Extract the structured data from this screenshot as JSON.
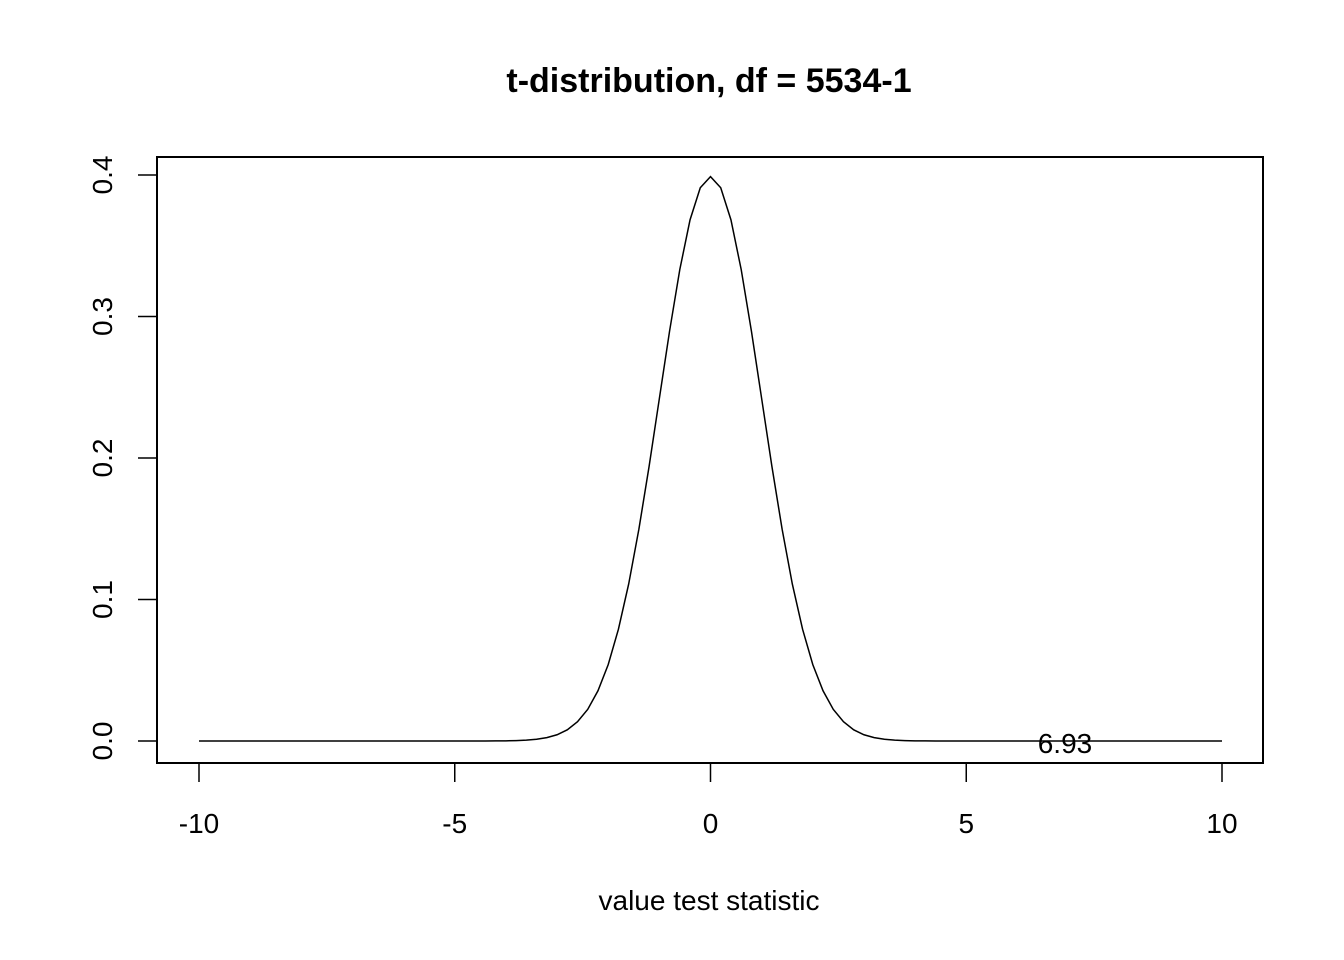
{
  "chart_data": {
    "type": "line",
    "title": "t-distribution, df = 5534-1",
    "xlabel": "value test statistic",
    "ylabel": "",
    "xlim": [
      -10,
      10
    ],
    "ylim": [
      0,
      0.4
    ],
    "x_ticks": [
      -10,
      -5,
      0,
      5,
      10
    ],
    "y_ticks": [
      0.0,
      0.1,
      0.2,
      0.3,
      0.4
    ],
    "x_tick_labels": [
      "-10",
      "-5",
      "0",
      "5",
      "10"
    ],
    "y_tick_labels": [
      "0.0",
      "0.1",
      "0.2",
      "0.3",
      "0.4"
    ],
    "grid": false,
    "series": [
      {
        "x": [
          -10,
          -9.8,
          -9.6,
          -9.4,
          -9.2,
          -9.0,
          -8.8,
          -8.6,
          -8.4,
          -8.2,
          -8.0,
          -7.8,
          -7.6,
          -7.4,
          -7.2,
          -7.0,
          -6.8,
          -6.6,
          -6.4,
          -6.2,
          -6.0,
          -5.8,
          -5.6,
          -5.4,
          -5.2,
          -5.0,
          -4.8,
          -4.6,
          -4.4,
          -4.2,
          -4.0,
          -3.8,
          -3.6,
          -3.4,
          -3.2,
          -3.0,
          -2.8,
          -2.6,
          -2.4,
          -2.2,
          -2.0,
          -1.8,
          -1.6,
          -1.4,
          -1.2,
          -1.0,
          -0.8,
          -0.6,
          -0.4,
          -0.2,
          0.0,
          0.2,
          0.4,
          0.6,
          0.8,
          1.0,
          1.2,
          1.4,
          1.6,
          1.8,
          2.0,
          2.2,
          2.4,
          2.6,
          2.8,
          3.0,
          3.2,
          3.4,
          3.6,
          3.8,
          4.0,
          4.2,
          4.4,
          4.6,
          4.8,
          5.0,
          5.2,
          5.4,
          5.6,
          5.8,
          6.0,
          6.2,
          6.4,
          6.6,
          6.8,
          7.0,
          7.2,
          7.4,
          7.6,
          7.8,
          8.0,
          8.2,
          8.4,
          8.6,
          8.8,
          9.0,
          9.2,
          9.4,
          9.6,
          9.8,
          10.0
        ],
        "values": [
          0,
          0,
          0,
          0,
          0,
          0,
          0,
          0,
          0,
          0,
          0,
          0,
          0,
          0,
          0,
          0,
          0,
          0,
          0,
          0,
          0,
          0,
          0,
          0,
          0,
          0,
          0,
          0,
          0,
          0.0001,
          0.0001,
          0.0003,
          0.0006,
          0.0012,
          0.0024,
          0.0044,
          0.0079,
          0.0136,
          0.0224,
          0.0355,
          0.054,
          0.079,
          0.1109,
          0.1497,
          0.1942,
          0.242,
          0.2897,
          0.3332,
          0.3683,
          0.391,
          0.3989,
          0.391,
          0.3683,
          0.3332,
          0.2897,
          0.242,
          0.1942,
          0.1497,
          0.1109,
          0.079,
          0.054,
          0.0355,
          0.0224,
          0.0136,
          0.0079,
          0.0044,
          0.0024,
          0.0012,
          0.0006,
          0.0003,
          0.0001,
          0.0001,
          0,
          0,
          0,
          0,
          0,
          0,
          0,
          0,
          0,
          0,
          0,
          0,
          0,
          0,
          0,
          0,
          0,
          0,
          0,
          0,
          0,
          0,
          0,
          0,
          0,
          0,
          0,
          0,
          0
        ]
      }
    ],
    "annotations": [
      {
        "text": "6.93",
        "x": 6.93,
        "y": 0.0
      }
    ]
  }
}
